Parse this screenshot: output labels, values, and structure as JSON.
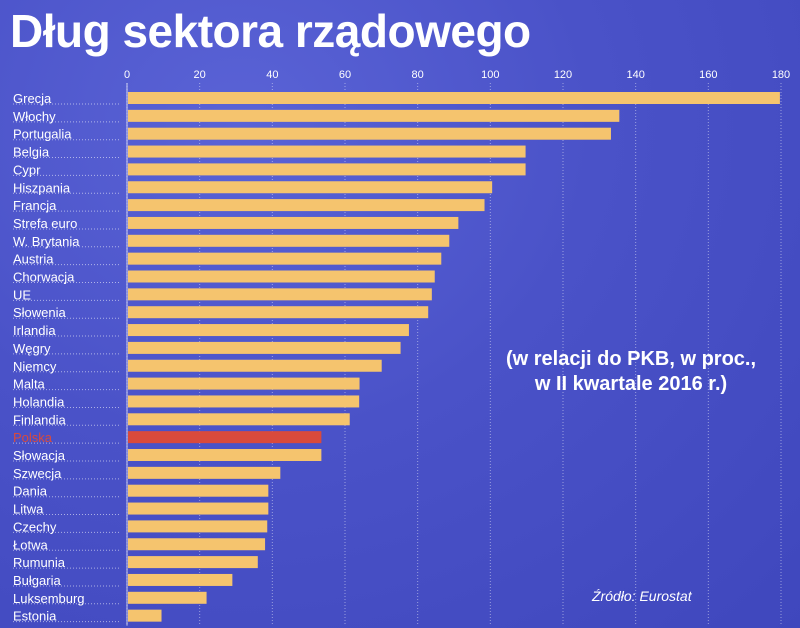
{
  "title": "Dług sektora rządowego",
  "note": {
    "line1": "(w relacji do PKB, w proc.,",
    "line2": "w II kwartale 2016 r.)"
  },
  "source": "Źródło: Eurostat",
  "colors": {
    "background": "#4a52c8",
    "bar": "#f5c46e",
    "highlight": "#d94a3c",
    "text": "#ffffff"
  },
  "chart_data": {
    "type": "bar",
    "orientation": "horizontal",
    "categories": [
      "Grecja",
      "Włochy",
      "Portugalia",
      "Belgia",
      "Cypr",
      "Hiszpania",
      "Francja",
      "Strefa euro",
      "W. Brytania",
      "Austria",
      "Chorwacja",
      "UE",
      "Słowenia",
      "Irlandia",
      "Węgry",
      "Niemcy",
      "Malta",
      "Holandia",
      "Finlandia",
      "Polska",
      "Słowacja",
      "Szwecja",
      "Dania",
      "Litwa",
      "Czechy",
      "Łotwa",
      "Rumunia",
      "Bułgaria",
      "Luksemburg",
      "Estonia"
    ],
    "values": [
      179.7,
      135.5,
      133.2,
      109.7,
      109.7,
      100.5,
      98.4,
      91.2,
      88.7,
      86.5,
      84.7,
      83.9,
      82.9,
      77.6,
      75.3,
      70.1,
      64.0,
      63.9,
      61.3,
      53.5,
      53.5,
      42.2,
      38.9,
      38.9,
      38.6,
      38.0,
      36.0,
      29.0,
      21.9,
      9.5
    ],
    "highlight": "Polska",
    "xlim": [
      0,
      180
    ],
    "xticks": [
      0,
      20,
      40,
      60,
      80,
      100,
      120,
      140,
      160,
      180
    ],
    "grid": true
  }
}
